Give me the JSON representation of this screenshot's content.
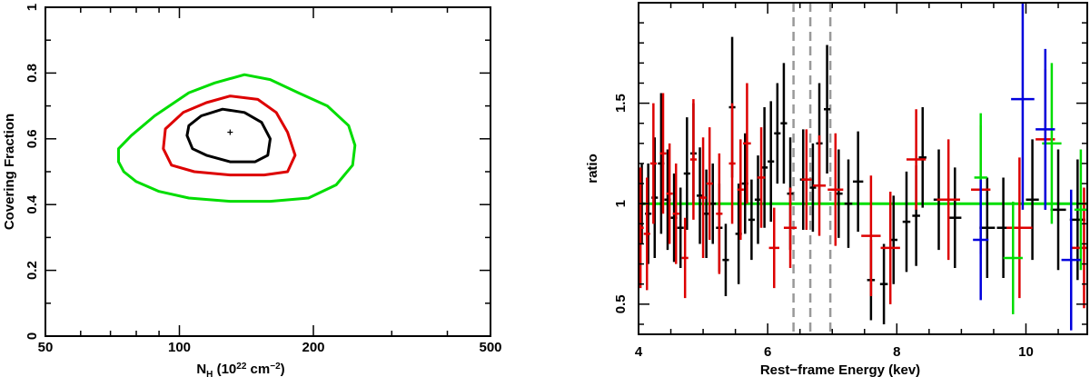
{
  "chart_data": [
    {
      "type": "contour",
      "ylabel": "Covering Fraction",
      "xlabel": {
        "main": "N",
        "sub": "H",
        "units_prefix": " (10",
        "sup": "22",
        "units_mid": " cm",
        "sup2": "−2",
        "units_suffix": ")"
      },
      "x_scale": "log",
      "xlim": [
        50,
        500
      ],
      "ylim": [
        0,
        1
      ],
      "x_ticks": [
        50,
        100,
        200,
        500
      ],
      "x_tick_labels": [
        "50",
        "100",
        "200",
        "500"
      ],
      "y_ticks": [
        0,
        0.2,
        0.4,
        0.6,
        0.8,
        1
      ],
      "y_tick_labels": [
        "0",
        "0.2",
        "0.4",
        "0.6",
        "0.8",
        "1"
      ],
      "best_fit": {
        "x": 130,
        "y": 0.62
      },
      "contours": [
        {
          "color": "#00dd00",
          "points": [
            [
              73,
              0.53
            ],
            [
              75,
              0.5
            ],
            [
              80,
              0.47
            ],
            [
              90,
              0.44
            ],
            [
              105,
              0.42
            ],
            [
              130,
              0.41
            ],
            [
              160,
              0.41
            ],
            [
              195,
              0.42
            ],
            [
              225,
              0.46
            ],
            [
              245,
              0.52
            ],
            [
              248,
              0.58
            ],
            [
              240,
              0.64
            ],
            [
              215,
              0.7
            ],
            [
              185,
              0.74
            ],
            [
              160,
              0.78
            ],
            [
              140,
              0.795
            ],
            [
              120,
              0.77
            ],
            [
              105,
              0.74
            ],
            [
              88,
              0.67
            ],
            [
              78,
              0.61
            ],
            [
              73,
              0.57
            ],
            [
              73,
              0.53
            ]
          ]
        },
        {
          "color": "#dd0000",
          "points": [
            [
              92,
              0.57
            ],
            [
              96,
              0.52
            ],
            [
              108,
              0.5
            ],
            [
              130,
              0.49
            ],
            [
              155,
              0.49
            ],
            [
              175,
              0.5
            ],
            [
              182,
              0.55
            ],
            [
              175,
              0.62
            ],
            [
              165,
              0.68
            ],
            [
              150,
              0.72
            ],
            [
              130,
              0.73
            ],
            [
              115,
              0.71
            ],
            [
              102,
              0.68
            ],
            [
              93,
              0.63
            ],
            [
              92,
              0.57
            ]
          ]
        },
        {
          "color": "#000000",
          "points": [
            [
              104,
              0.61
            ],
            [
              107,
              0.57
            ],
            [
              115,
              0.55
            ],
            [
              130,
              0.53
            ],
            [
              148,
              0.53
            ],
            [
              158,
              0.55
            ],
            [
              160,
              0.6
            ],
            [
              153,
              0.65
            ],
            [
              140,
              0.68
            ],
            [
              125,
              0.69
            ],
            [
              112,
              0.67
            ],
            [
              105,
              0.64
            ],
            [
              104,
              0.61
            ]
          ]
        }
      ]
    },
    {
      "type": "scatter",
      "ylabel": "ratio",
      "xlabel": "Rest−frame Energy (kev)",
      "xlim": [
        4,
        10.95
      ],
      "ylim": [
        0.35,
        2.0
      ],
      "x_ticks": [
        4,
        6,
        8,
        10
      ],
      "x_tick_labels": [
        "4",
        "6",
        "8",
        "10"
      ],
      "y_ticks": [
        0.5,
        1,
        1.5
      ],
      "y_tick_labels": [
        "0.5",
        "1",
        "1.5"
      ],
      "reference_line": {
        "y": 1.0,
        "color": "#00dd00"
      },
      "dashed_lines": [
        6.4,
        6.66,
        6.97
      ],
      "series": [
        {
          "color": "#000000",
          "points": [
            [
              4.05,
              1.0,
              0.05,
              0.2
            ],
            [
              4.15,
              0.95,
              0.05,
              0.25
            ],
            [
              4.25,
              1.03,
              0.05,
              0.3
            ],
            [
              4.35,
              1.2,
              0.05,
              0.35
            ],
            [
              4.45,
              1.02,
              0.05,
              0.25
            ],
            [
              4.55,
              0.93,
              0.05,
              0.22
            ],
            [
              4.65,
              0.88,
              0.05,
              0.2
            ],
            [
              4.75,
              1.15,
              0.05,
              0.28
            ],
            [
              4.85,
              1.25,
              0.05,
              0.25
            ],
            [
              4.95,
              1.04,
              0.05,
              0.24
            ],
            [
              5.05,
              0.95,
              0.05,
              0.22
            ],
            [
              5.15,
              1.0,
              0.05,
              0.2
            ],
            [
              5.25,
              0.88,
              0.05,
              0.22
            ],
            [
              5.35,
              0.72,
              0.05,
              0.18
            ],
            [
              5.45,
              1.48,
              0.05,
              0.35
            ],
            [
              5.55,
              0.85,
              0.05,
              0.25
            ],
            [
              5.65,
              1.1,
              0.05,
              0.25
            ],
            [
              5.75,
              0.92,
              0.05,
              0.2
            ],
            [
              5.85,
              1.02,
              0.05,
              0.22
            ],
            [
              5.95,
              1.18,
              0.05,
              0.3
            ],
            [
              6.05,
              1.21,
              0.05,
              0.3
            ],
            [
              6.15,
              1.35,
              0.05,
              0.25
            ],
            [
              6.25,
              1.4,
              0.05,
              0.3
            ],
            [
              6.35,
              1.05,
              0.05,
              0.28
            ],
            [
              6.55,
              1.12,
              0.05,
              0.25
            ],
            [
              6.7,
              1.08,
              0.05,
              0.22
            ],
            [
              6.8,
              1.3,
              0.05,
              0.3
            ],
            [
              6.92,
              1.47,
              0.05,
              0.32
            ],
            [
              7.1,
              1.05,
              0.06,
              0.22
            ],
            [
              7.25,
              1.0,
              0.06,
              0.22
            ],
            [
              7.4,
              1.11,
              0.08,
              0.25
            ],
            [
              7.6,
              0.62,
              0.06,
              0.2
            ],
            [
              7.8,
              0.6,
              0.06,
              0.2
            ],
            [
              7.95,
              0.82,
              0.06,
              0.22
            ],
            [
              8.15,
              0.91,
              0.06,
              0.25
            ],
            [
              8.3,
              0.94,
              0.06,
              0.25
            ],
            [
              8.4,
              1.23,
              0.06,
              0.25
            ],
            [
              8.65,
              1.02,
              0.08,
              0.25
            ],
            [
              8.9,
              0.93,
              0.1,
              0.25
            ],
            [
              9.4,
              0.88,
              0.12,
              0.25
            ],
            [
              9.65,
              0.88,
              0.1,
              0.25
            ],
            [
              10.1,
              1.02,
              0.1,
              0.3
            ],
            [
              10.5,
              0.97,
              0.12,
              0.3
            ],
            [
              10.8,
              0.92,
              0.12,
              0.3
            ]
          ]
        },
        {
          "color": "#dd0000",
          "points": [
            [
              4.03,
              0.88,
              0.05,
              0.3
            ],
            [
              4.13,
              0.85,
              0.05,
              0.28
            ],
            [
              4.23,
              1.2,
              0.05,
              0.3
            ],
            [
              4.38,
              1.25,
              0.05,
              0.3
            ],
            [
              4.48,
              1.05,
              0.05,
              0.25
            ],
            [
              4.58,
              0.95,
              0.05,
              0.25
            ],
            [
              4.72,
              0.73,
              0.05,
              0.2
            ],
            [
              4.85,
              1.22,
              0.05,
              0.3
            ],
            [
              5.0,
              1.03,
              0.05,
              0.3
            ],
            [
              5.1,
              1.1,
              0.05,
              0.28
            ],
            [
              5.25,
              0.95,
              0.05,
              0.3
            ],
            [
              5.45,
              1.2,
              0.05,
              0.3
            ],
            [
              5.58,
              1.07,
              0.05,
              0.25
            ],
            [
              5.68,
              1.3,
              0.06,
              0.3
            ],
            [
              5.9,
              1.13,
              0.06,
              0.25
            ],
            [
              6.1,
              0.78,
              0.08,
              0.2
            ],
            [
              6.35,
              0.88,
              0.1,
              0.2
            ],
            [
              6.6,
              1.12,
              0.08,
              0.25
            ],
            [
              6.8,
              1.09,
              0.1,
              0.25
            ],
            [
              7.05,
              1.07,
              0.12,
              0.28
            ],
            [
              7.6,
              0.84,
              0.15,
              0.3
            ],
            [
              7.9,
              0.78,
              0.15,
              0.28
            ],
            [
              8.3,
              1.22,
              0.15,
              0.25
            ],
            [
              8.8,
              1.02,
              0.18,
              0.3
            ],
            [
              9.3,
              1.07,
              0.15,
              0.32
            ],
            [
              9.9,
              0.88,
              0.2,
              0.35
            ],
            [
              10.3,
              1.32,
              0.15,
              0.35
            ],
            [
              10.9,
              0.78,
              0.2,
              0.3
            ]
          ]
        },
        {
          "color": "#00dd00",
          "points": [
            [
              9.3,
              1.13,
              0.1,
              0.32
            ],
            [
              9.8,
              0.73,
              0.15,
              0.28
            ],
            [
              10.4,
              1.3,
              0.15,
              0.4
            ],
            [
              10.85,
              0.97,
              0.1,
              0.3
            ]
          ]
        },
        {
          "color": "#0000dd",
          "points": [
            [
              9.3,
              0.82,
              0.12,
              0.3
            ],
            [
              9.95,
              1.52,
              0.18,
              0.55
            ],
            [
              10.3,
              1.37,
              0.15,
              0.4
            ],
            [
              10.7,
              0.72,
              0.15,
              0.35
            ]
          ]
        }
      ]
    }
  ]
}
